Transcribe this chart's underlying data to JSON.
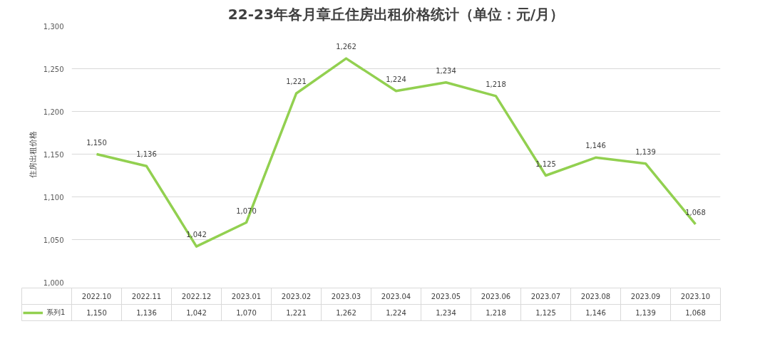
{
  "chart_data": {
    "type": "line",
    "title": "22-23年各月章丘住房出租价格统计（单位：元/月）",
    "ylabel": "住房出租价格",
    "categories": [
      "2022.10",
      "2022.11",
      "2022.12",
      "2023.01",
      "2023.02",
      "2023.03",
      "2023.04",
      "2023.05",
      "2023.06",
      "2023.07",
      "2023.08",
      "2023.09",
      "2023.10"
    ],
    "series": [
      {
        "name": "系列1",
        "color": "#92d050",
        "values": [
          1150,
          1136,
          1042,
          1070,
          1221,
          1262,
          1224,
          1234,
          1218,
          1125,
          1146,
          1139,
          1068
        ],
        "value_labels": [
          "1,150",
          "1,136",
          "1,042",
          "1,070",
          "1,221",
          "1,262",
          "1,224",
          "1,234",
          "1,218",
          "1,125",
          "1,146",
          "1,139",
          "1,068"
        ]
      }
    ],
    "ylim": [
      1000,
      1300
    ],
    "yticks": [
      {
        "value": 1000,
        "label": "1,000"
      },
      {
        "value": 1050,
        "label": "1,050"
      },
      {
        "value": 1100,
        "label": "1,100"
      },
      {
        "value": 1150,
        "label": "1,150"
      },
      {
        "value": 1200,
        "label": "1,200"
      },
      {
        "value": 1250,
        "label": "1,250"
      },
      {
        "value": 1300,
        "label": "1,300"
      }
    ],
    "grid": "y",
    "legend": "bottom left",
    "marker": "none",
    "line_style": "solid"
  }
}
